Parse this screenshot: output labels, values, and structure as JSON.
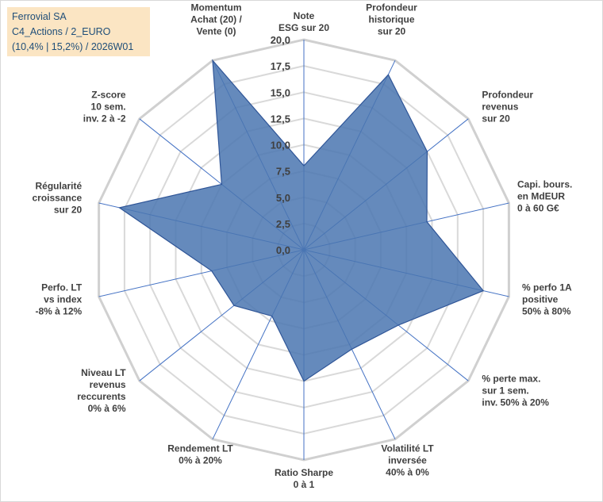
{
  "title_box": {
    "line1": "Ferrovial SA",
    "line2": "C4_Actions / 2_EURO",
    "line3": "(10,4% | 15,2%) / 2026W01"
  },
  "colors": {
    "fill": "#4a76b0",
    "stroke": "#2f5597",
    "grid": "#d9d9d9",
    "axis": "#4472c4",
    "title_bg": "#fbe5c3",
    "title_text": "#1f4e79"
  },
  "chart_data": {
    "type": "radar",
    "title": "",
    "rmax": 20,
    "tick_step": 2.5,
    "tick_labels": [
      "0,0",
      "2,5",
      "5,0",
      "7,5",
      "10,0",
      "12,5",
      "15,0",
      "17,5",
      "20,0"
    ],
    "categories": [
      [
        "Note",
        "ESG sur 20"
      ],
      [
        "Profondeur",
        "historique",
        "sur 20"
      ],
      [
        "Profondeur",
        "revenus",
        "sur 20"
      ],
      [
        "Capi. bours.",
        "en MdEUR",
        "0 à 60 G€"
      ],
      [
        "% perfo 1A",
        "positive",
        "50% à 80%"
      ],
      [
        "% perte max.",
        "sur 1 sem.",
        "inv. 50% à 20%"
      ],
      [
        "Volatilité LT",
        "inversée",
        "40% à 0%"
      ],
      [
        "Ratio Sharpe",
        "0 à 1"
      ],
      [
        "Rendement LT",
        "0% à 20%"
      ],
      [
        "Niveau LT",
        "revenus",
        "reccurents",
        "0% à 6%"
      ],
      [
        "Perfo. LT",
        "vs index",
        "-8% à 12%"
      ],
      [
        "Régularité",
        "croissance",
        "sur 20"
      ],
      [
        "Z-score",
        "10 sem.",
        "inv. 2 à -2"
      ],
      [
        "Momentum",
        "Achat (20) /",
        "Vente (0)"
      ]
    ],
    "series": [
      {
        "name": "Ferrovial SA",
        "values": [
          8.0,
          18.5,
          15.0,
          12.0,
          17.5,
          11.5,
          10.5,
          12.5,
          7.0,
          8.5,
          9.0,
          18.0,
          10.0,
          20.0
        ]
      }
    ]
  }
}
